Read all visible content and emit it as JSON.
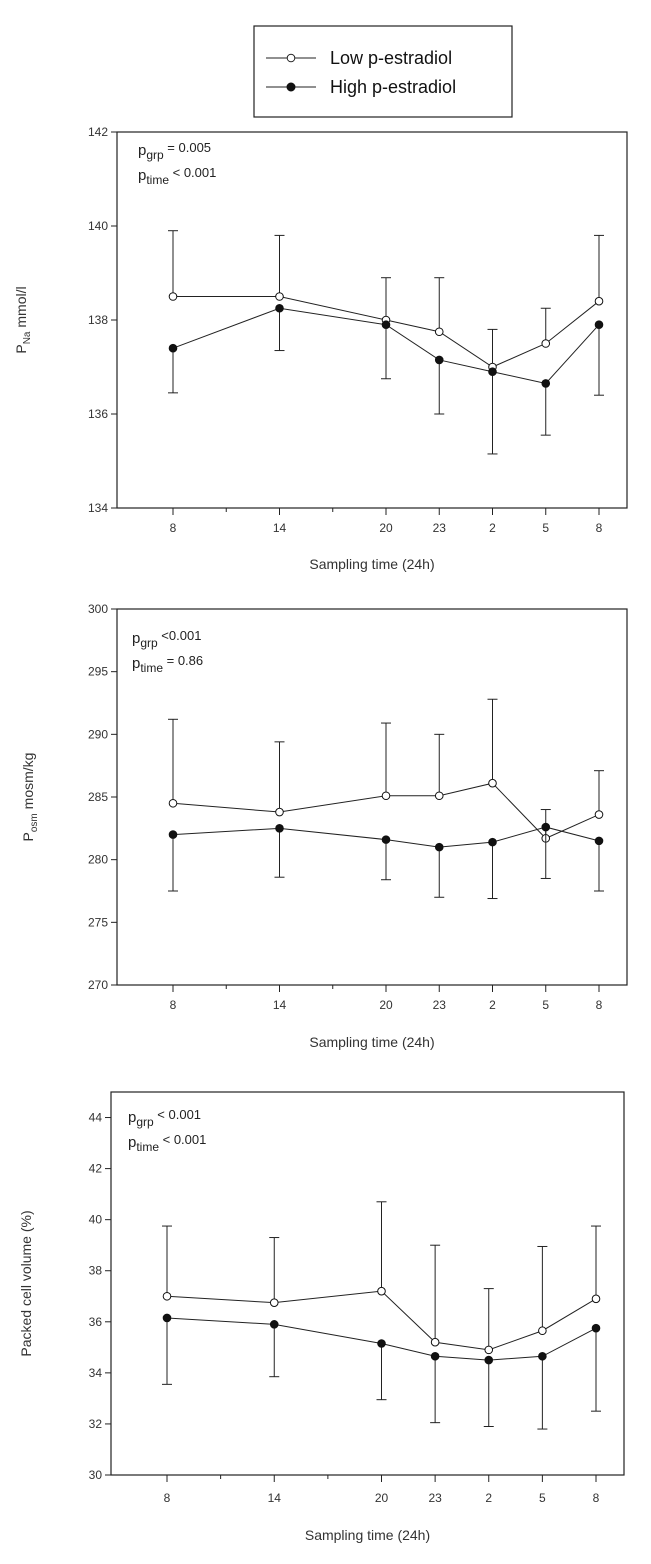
{
  "legend": {
    "items": [
      {
        "label": "Low p-estradiol",
        "marker": "open-circle"
      },
      {
        "label": "High p-estradiol",
        "marker": "filled-circle"
      }
    ]
  },
  "chart_data": [
    {
      "type": "line",
      "xlabel": "Sampling time (24h)",
      "ylabel": {
        "main": "P",
        "sub": "Na",
        "rest": " mmol/l"
      },
      "annotation": [
        {
          "main": "p",
          "sub": "grp",
          "rest": " = 0.005"
        },
        {
          "main": "p",
          "sub": "time",
          "rest": "  < 0.001"
        }
      ],
      "x": [
        8,
        14,
        20,
        23,
        2,
        5,
        8
      ],
      "x_positions_hours": [
        0,
        6,
        12,
        15,
        18,
        21,
        24
      ],
      "ylim": [
        134,
        142
      ],
      "yticks": [
        134,
        136,
        138,
        140,
        142
      ],
      "series": [
        {
          "name": "Low p-estradiol",
          "marker": "open",
          "values": [
            138.5,
            138.5,
            138.0,
            137.75,
            137.0,
            137.5,
            138.4
          ],
          "err_up": [
            139.9,
            139.8,
            138.9,
            138.9,
            137.8,
            138.25,
            139.8
          ],
          "err_down": [
            null,
            null,
            null,
            null,
            null,
            null,
            null
          ]
        },
        {
          "name": "High p-estradiol",
          "marker": "filled",
          "values": [
            137.4,
            138.25,
            137.9,
            137.15,
            136.9,
            136.65,
            137.9
          ],
          "err_up": [
            null,
            null,
            null,
            null,
            null,
            null,
            null
          ],
          "err_down": [
            136.45,
            137.35,
            136.75,
            136.0,
            135.15,
            135.55,
            136.4
          ]
        }
      ]
    },
    {
      "type": "line",
      "xlabel": "Sampling time (24h)",
      "ylabel": {
        "main": "P",
        "sub": "osm",
        "rest": " mosm/kg"
      },
      "annotation": [
        {
          "main": "p",
          "sub": "grp",
          "rest": " <0.001"
        },
        {
          "main": "p",
          "sub": "time",
          "rest": " = 0.86"
        }
      ],
      "x": [
        8,
        14,
        20,
        23,
        2,
        5,
        8
      ],
      "x_positions_hours": [
        0,
        6,
        12,
        15,
        18,
        21,
        24
      ],
      "ylim": [
        270,
        300
      ],
      "yticks": [
        270,
        275,
        280,
        285,
        290,
        295,
        300
      ],
      "series": [
        {
          "name": "Low p-estradiol",
          "marker": "open",
          "values": [
            284.5,
            283.8,
            285.1,
            285.1,
            286.1,
            281.7,
            283.6
          ],
          "err_up": [
            291.2,
            289.4,
            290.9,
            290.0,
            292.8,
            284.0,
            287.1
          ],
          "err_down": [
            null,
            null,
            null,
            null,
            null,
            null,
            null
          ]
        },
        {
          "name": "High p-estradiol",
          "marker": "filled",
          "values": [
            282.0,
            282.5,
            281.6,
            281.0,
            281.4,
            282.6,
            281.5
          ],
          "err_up": [
            null,
            null,
            null,
            null,
            null,
            null,
            null
          ],
          "err_down": [
            277.5,
            278.6,
            278.4,
            277.0,
            276.9,
            278.5,
            277.5
          ]
        }
      ]
    },
    {
      "type": "line",
      "xlabel": "Sampling time (24h)",
      "ylabel": {
        "main": "Packed cell volume (%)",
        "sub": "",
        "rest": ""
      },
      "annotation": [
        {
          "main": "p",
          "sub": "grp",
          "rest": " < 0.001"
        },
        {
          "main": "p",
          "sub": "time",
          "rest": " < 0.001"
        }
      ],
      "x": [
        8,
        14,
        20,
        23,
        2,
        5,
        8
      ],
      "x_positions_hours": [
        0,
        6,
        12,
        15,
        18,
        21,
        24
      ],
      "ylim": [
        30,
        45
      ],
      "yticks": [
        30,
        32,
        34,
        36,
        38,
        40,
        42,
        44
      ],
      "series": [
        {
          "name": "Low p-estradiol",
          "marker": "open",
          "values": [
            37.0,
            36.75,
            37.2,
            35.2,
            34.9,
            35.65,
            36.9
          ],
          "err_up": [
            39.75,
            39.3,
            40.7,
            39.0,
            37.3,
            38.95,
            39.75
          ],
          "err_down": [
            null,
            null,
            null,
            null,
            null,
            null,
            null
          ]
        },
        {
          "name": "High p-estradiol",
          "marker": "filled",
          "values": [
            36.15,
            35.9,
            35.15,
            34.65,
            34.5,
            34.65,
            35.75
          ],
          "err_up": [
            null,
            null,
            null,
            null,
            null,
            null,
            null
          ],
          "err_down": [
            33.55,
            33.85,
            32.95,
            32.05,
            31.9,
            31.8,
            32.5
          ]
        }
      ]
    }
  ]
}
